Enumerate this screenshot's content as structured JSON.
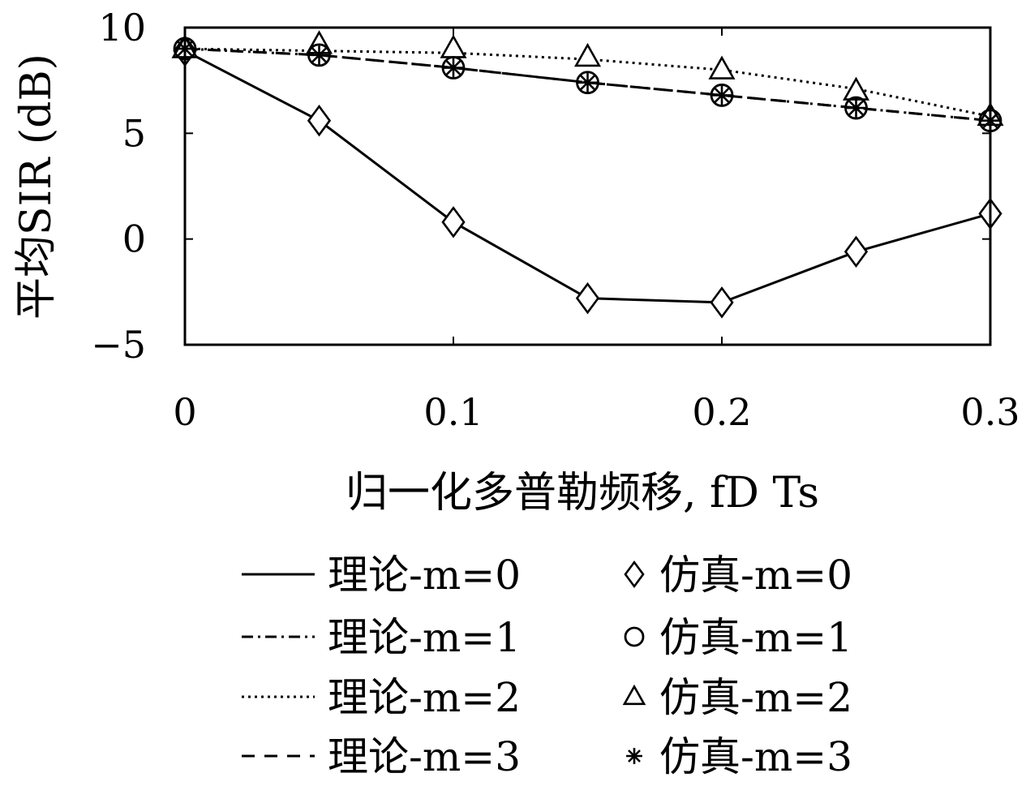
{
  "colors": {
    "line": "#000000",
    "background": "#ffffff"
  },
  "chart_data": {
    "type": "line",
    "xlabel": "归一化多普勒频移, fD Ts",
    "ylabel": "平均SIR (dB)",
    "xlim": [
      0,
      0.3
    ],
    "ylim": [
      -5,
      10
    ],
    "xticks": [
      0,
      0.1,
      0.2,
      0.3
    ],
    "xtick_labels": [
      "0",
      "0.1",
      "0.2",
      "0.3"
    ],
    "yticks": [
      -5,
      0,
      5,
      10
    ],
    "ytick_labels": [
      "−5",
      "0",
      "5",
      "10"
    ],
    "x": [
      0,
      0.05,
      0.1,
      0.15,
      0.2,
      0.25,
      0.3
    ],
    "grid": false,
    "legend_position": "bottom",
    "series": [
      {
        "name": "理论-m=0",
        "kind": "theory",
        "style": "solid",
        "values": [
          8.9,
          5.6,
          0.8,
          -2.8,
          -3.0,
          -0.6,
          1.2
        ]
      },
      {
        "name": "理论-m=1",
        "kind": "theory",
        "style": "dashdot",
        "values": [
          9.0,
          8.7,
          8.1,
          7.4,
          6.8,
          6.2,
          5.6
        ]
      },
      {
        "name": "理论-m=2",
        "kind": "theory",
        "style": "dotted",
        "values": [
          9.0,
          8.9,
          8.8,
          8.5,
          8.0,
          7.1,
          5.8
        ]
      },
      {
        "name": "理论-m=3",
        "kind": "theory",
        "style": "dashed",
        "values": [
          9.0,
          8.7,
          8.1,
          7.4,
          6.8,
          6.2,
          5.6
        ]
      },
      {
        "name": "仿真-m=0",
        "kind": "simulation",
        "marker": "diamond",
        "values": [
          8.9,
          5.6,
          0.8,
          -2.8,
          -3.0,
          -0.6,
          1.2
        ]
      },
      {
        "name": "仿真-m=1",
        "kind": "simulation",
        "marker": "circle",
        "values": [
          9.0,
          8.7,
          8.1,
          7.4,
          6.8,
          6.2,
          5.6
        ]
      },
      {
        "name": "仿真-m=2",
        "kind": "simulation",
        "marker": "triangle",
        "values": [
          9.0,
          9.2,
          9.0,
          8.6,
          8.0,
          7.0,
          5.8
        ]
      },
      {
        "name": "仿真-m=3",
        "kind": "simulation",
        "marker": "asterisk",
        "values": [
          9.0,
          8.7,
          8.1,
          7.4,
          6.8,
          6.2,
          5.6
        ]
      }
    ]
  }
}
